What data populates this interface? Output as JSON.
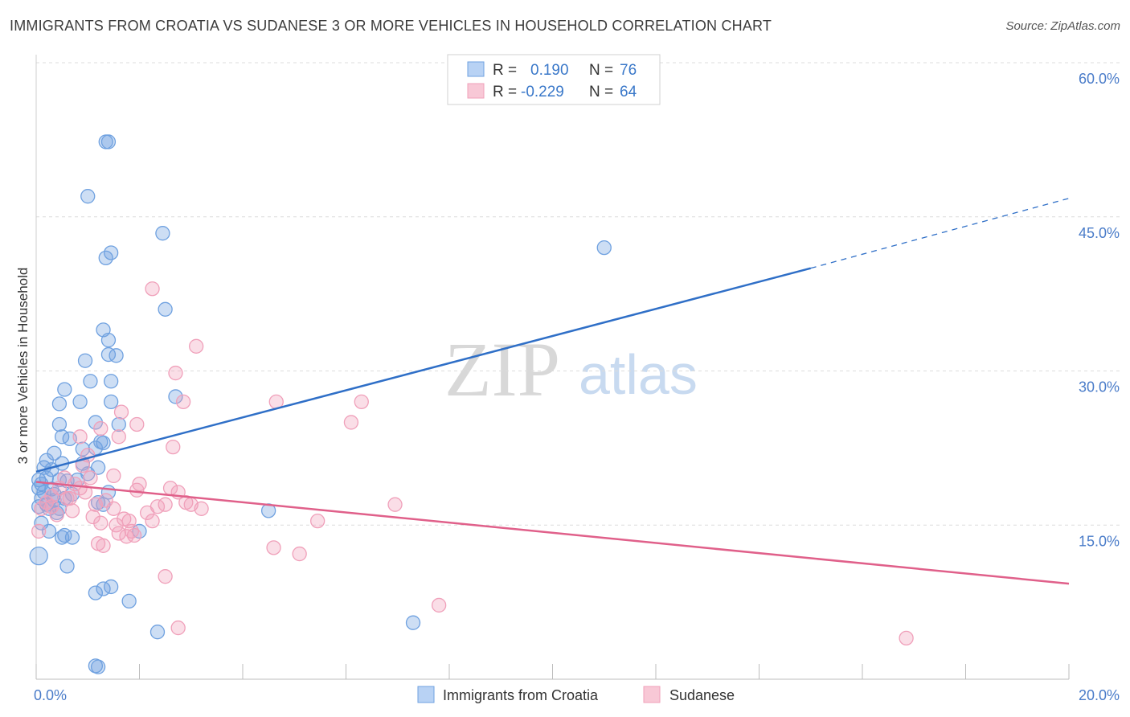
{
  "title": "IMMIGRANTS FROM CROATIA VS SUDANESE 3 OR MORE VEHICLES IN HOUSEHOLD CORRELATION CHART",
  "source": "Source: ZipAtlas.com",
  "watermark": {
    "zip": "ZIP",
    "atlas": "atlas"
  },
  "chart_data": {
    "type": "scatter",
    "xlabel": "",
    "ylabel": "3 or more Vehicles in Household",
    "xlim": [
      0,
      20
    ],
    "ylim": [
      0,
      60
    ],
    "x_tick_labels": [
      "0.0%",
      "20.0%"
    ],
    "y_ticks": [
      15,
      30,
      45,
      60
    ],
    "y_tick_labels": [
      "15.0%",
      "30.0%",
      "45.0%",
      "60.0%"
    ],
    "grid": true,
    "legend": {
      "placement": "top-center",
      "entries": [
        {
          "r_label": "R =",
          "r_value": "0.190",
          "n_label": "N =",
          "n_value": "76"
        },
        {
          "r_label": "R =",
          "r_value": "-0.229",
          "n_label": "N =",
          "n_value": "64"
        }
      ]
    },
    "series": [
      {
        "name": "Immigrants from Croatia",
        "color": "#6fa1e0",
        "line_color": "#2f6fc7",
        "trend": {
          "x0": 0,
          "y0": 20.2,
          "x1": 15,
          "y1": 40.0,
          "dash_to_x": 20,
          "dash_to_y": 46.8
        },
        "points": [
          [
            0.05,
            18.6
          ],
          [
            0.1,
            19.0
          ],
          [
            0.15,
            18.2
          ],
          [
            0.1,
            17.6
          ],
          [
            0.2,
            17.0
          ],
          [
            0.05,
            16.8
          ],
          [
            0.3,
            18.5
          ],
          [
            0.25,
            16.6
          ],
          [
            0.35,
            17.4
          ],
          [
            0.4,
            16.2
          ],
          [
            0.2,
            21.3
          ],
          [
            0.3,
            20.4
          ],
          [
            0.45,
            19.4
          ],
          [
            0.55,
            17.6
          ],
          [
            0.5,
            21.0
          ],
          [
            0.6,
            19.3
          ],
          [
            0.7,
            18.0
          ],
          [
            0.8,
            19.4
          ],
          [
            0.9,
            21.0
          ],
          [
            1.0,
            20.0
          ],
          [
            1.15,
            22.5
          ],
          [
            1.2,
            20.6
          ],
          [
            0.1,
            15.2
          ],
          [
            0.25,
            14.4
          ],
          [
            0.5,
            13.8
          ],
          [
            0.55,
            14.0
          ],
          [
            0.7,
            13.8
          ],
          [
            0.45,
            16.6
          ],
          [
            0.35,
            22.0
          ],
          [
            0.65,
            23.4
          ],
          [
            0.9,
            22.4
          ],
          [
            0.15,
            20.6
          ],
          [
            0.45,
            24.8
          ],
          [
            0.45,
            26.8
          ],
          [
            0.85,
            27.0
          ],
          [
            0.55,
            28.2
          ],
          [
            0.5,
            23.6
          ],
          [
            1.6,
            24.8
          ],
          [
            1.3,
            23.0
          ],
          [
            1.15,
            25.0
          ],
          [
            1.45,
            27.0
          ],
          [
            1.25,
            23.1
          ],
          [
            1.05,
            29.0
          ],
          [
            1.45,
            29.0
          ],
          [
            0.95,
            31.0
          ],
          [
            1.4,
            31.6
          ],
          [
            1.55,
            31.5
          ],
          [
            1.4,
            33.0
          ],
          [
            1.3,
            34.0
          ],
          [
            1.0,
            47.0
          ],
          [
            1.35,
            41.0
          ],
          [
            1.45,
            41.5
          ],
          [
            2.45,
            43.4
          ],
          [
            1.35,
            52.3
          ],
          [
            1.4,
            52.3
          ],
          [
            2.5,
            36.0
          ],
          [
            2.7,
            27.5
          ],
          [
            1.2,
            17.2
          ],
          [
            1.3,
            17.0
          ],
          [
            2.0,
            14.4
          ],
          [
            0.05,
            12.0
          ],
          [
            0.6,
            11.0
          ],
          [
            1.15,
            8.4
          ],
          [
            1.3,
            8.8
          ],
          [
            1.45,
            9.0
          ],
          [
            1.8,
            7.6
          ],
          [
            2.35,
            4.6
          ],
          [
            1.15,
            1.3
          ],
          [
            1.2,
            1.2
          ],
          [
            11.0,
            42.0
          ],
          [
            7.3,
            5.5
          ],
          [
            4.5,
            16.4
          ],
          [
            0.05,
            19.4
          ],
          [
            0.2,
            19.6
          ],
          [
            1.4,
            18.2
          ],
          [
            0.35,
            18.0
          ]
        ]
      },
      {
        "name": "Sudanese",
        "color": "#f0a0ba",
        "line_color": "#e0608a",
        "trend": {
          "x0": 0,
          "y0": 19.2,
          "x1": 20,
          "y1": 9.3
        },
        "points": [
          [
            0.05,
            14.4
          ],
          [
            0.1,
            16.6
          ],
          [
            0.2,
            17.2
          ],
          [
            0.3,
            17.8
          ],
          [
            0.45,
            18.6
          ],
          [
            0.55,
            19.6
          ],
          [
            0.65,
            17.6
          ],
          [
            0.7,
            16.4
          ],
          [
            0.75,
            19.0
          ],
          [
            0.85,
            18.6
          ],
          [
            0.95,
            18.2
          ],
          [
            1.05,
            19.6
          ],
          [
            1.15,
            17.0
          ],
          [
            1.25,
            15.2
          ],
          [
            1.35,
            17.4
          ],
          [
            1.5,
            16.6
          ],
          [
            1.55,
            15.0
          ],
          [
            1.6,
            14.2
          ],
          [
            1.7,
            15.6
          ],
          [
            1.75,
            13.9
          ],
          [
            1.85,
            14.4
          ],
          [
            1.9,
            14.0
          ],
          [
            2.0,
            19.0
          ],
          [
            2.15,
            16.2
          ],
          [
            2.25,
            15.4
          ],
          [
            2.35,
            16.8
          ],
          [
            2.5,
            17.0
          ],
          [
            2.6,
            18.6
          ],
          [
            2.75,
            18.2
          ],
          [
            2.9,
            17.2
          ],
          [
            3.0,
            17.0
          ],
          [
            3.2,
            16.6
          ],
          [
            1.2,
            13.2
          ],
          [
            1.3,
            13.0
          ],
          [
            1.1,
            15.8
          ],
          [
            0.4,
            16.0
          ],
          [
            0.9,
            20.8
          ],
          [
            1.0,
            21.8
          ],
          [
            0.85,
            23.6
          ],
          [
            1.6,
            23.6
          ],
          [
            1.25,
            24.4
          ],
          [
            1.95,
            24.8
          ],
          [
            2.65,
            22.6
          ],
          [
            1.65,
            26.0
          ],
          [
            2.85,
            27.0
          ],
          [
            3.1,
            32.4
          ],
          [
            2.25,
            38.0
          ],
          [
            2.7,
            29.8
          ],
          [
            4.65,
            27.0
          ],
          [
            6.3,
            27.0
          ],
          [
            6.1,
            25.0
          ],
          [
            6.95,
            17.0
          ],
          [
            5.45,
            15.4
          ],
          [
            4.6,
            12.8
          ],
          [
            5.1,
            12.2
          ],
          [
            7.8,
            7.2
          ],
          [
            2.5,
            10.0
          ],
          [
            2.75,
            5.0
          ],
          [
            16.85,
            4.0
          ],
          [
            1.95,
            18.4
          ],
          [
            1.5,
            19.8
          ],
          [
            0.6,
            17.6
          ],
          [
            1.8,
            15.4
          ],
          [
            0.3,
            16.8
          ]
        ]
      }
    ]
  },
  "bottom_legend": [
    {
      "label": "Immigrants from Croatia",
      "color": "#6fa1e0"
    },
    {
      "label": "Sudanese",
      "color": "#f0a0ba"
    }
  ]
}
